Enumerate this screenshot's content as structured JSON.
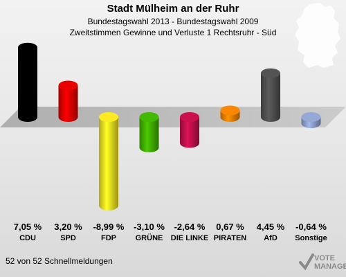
{
  "header": {
    "title": "Stadt Mülheim an der Ruhr",
    "subtitle1": "Bundestagswahl 2013 - Bundestagswahl 2009",
    "subtitle2": "Zweitstimmen Gewinne und Verluste 1 Rechtsruhr - Süd"
  },
  "footer": {
    "text": "52 von 52 Schnellmeldungen"
  },
  "logo": {
    "line1": "VOTE",
    "line2": "MANAGER"
  },
  "chart_data": {
    "type": "bar",
    "title": "Zweitstimmen Gewinne und Verluste 1 Rechtsruhr - Süd",
    "categories": [
      "CDU",
      "SPD",
      "FDP",
      "GRÜNE",
      "DIE LINKE",
      "PIRATEN",
      "AfD",
      "Sonstige"
    ],
    "values": [
      7.05,
      3.2,
      -8.99,
      -3.1,
      -2.64,
      0.67,
      4.45,
      -0.64
    ],
    "value_labels": [
      "7,05 %",
      "3,20 %",
      "-8,99 %",
      "-3,10 %",
      "-2,64 %",
      "0,67 %",
      "4,45 %",
      "-0,64 %"
    ],
    "colors": [
      "#000000",
      "#e00000",
      "#f0e020",
      "#40b000",
      "#c0104a",
      "#f08000",
      "#505050",
      "#8fa0cc"
    ],
    "grid": false,
    "legend": "none"
  }
}
